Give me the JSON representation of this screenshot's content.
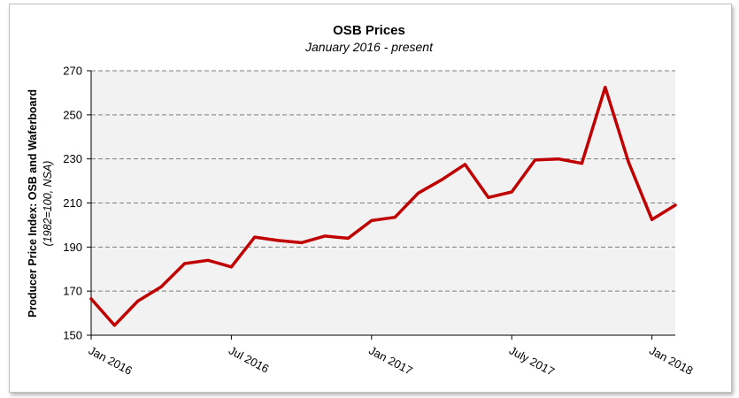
{
  "chart_data": {
    "type": "line",
    "title": "OSB Prices",
    "subtitle": "January 2016 - present",
    "ylabel": "Producer Price Index: OSB and Waferboard",
    "ylabel_note": "(1982=100, NSA)",
    "ylim": [
      150,
      270
    ],
    "yticks": [
      150,
      170,
      190,
      210,
      230,
      250,
      270
    ],
    "y_gridlines": "dashed",
    "x_tick_labels": [
      {
        "label": "Jan 2016",
        "index": 0
      },
      {
        "label": "Jul 2016",
        "index": 6
      },
      {
        "label": "Jan 2017",
        "index": 12
      },
      {
        "label": "July 2017",
        "index": 18
      },
      {
        "label": "Jan 2018",
        "index": 24
      }
    ],
    "x": [
      "2016-01",
      "2016-02",
      "2016-03",
      "2016-04",
      "2016-05",
      "2016-06",
      "2016-07",
      "2016-08",
      "2016-09",
      "2016-10",
      "2016-11",
      "2016-12",
      "2017-01",
      "2017-02",
      "2017-03",
      "2017-04",
      "2017-05",
      "2017-06",
      "2017-07",
      "2017-08",
      "2017-09",
      "2017-10",
      "2017-11",
      "2017-12",
      "2018-01",
      "2018-02"
    ],
    "series": [
      {
        "color": "#c00000",
        "values": [
          166.5,
          154.5,
          165.5,
          172,
          182.5,
          184,
          181,
          194.5,
          193,
          192,
          195,
          194,
          202,
          203.5,
          214.5,
          220.5,
          227.5,
          212.5,
          215,
          229.5,
          230,
          228,
          262.5,
          228.5,
          202.5,
          209
        ]
      }
    ]
  }
}
